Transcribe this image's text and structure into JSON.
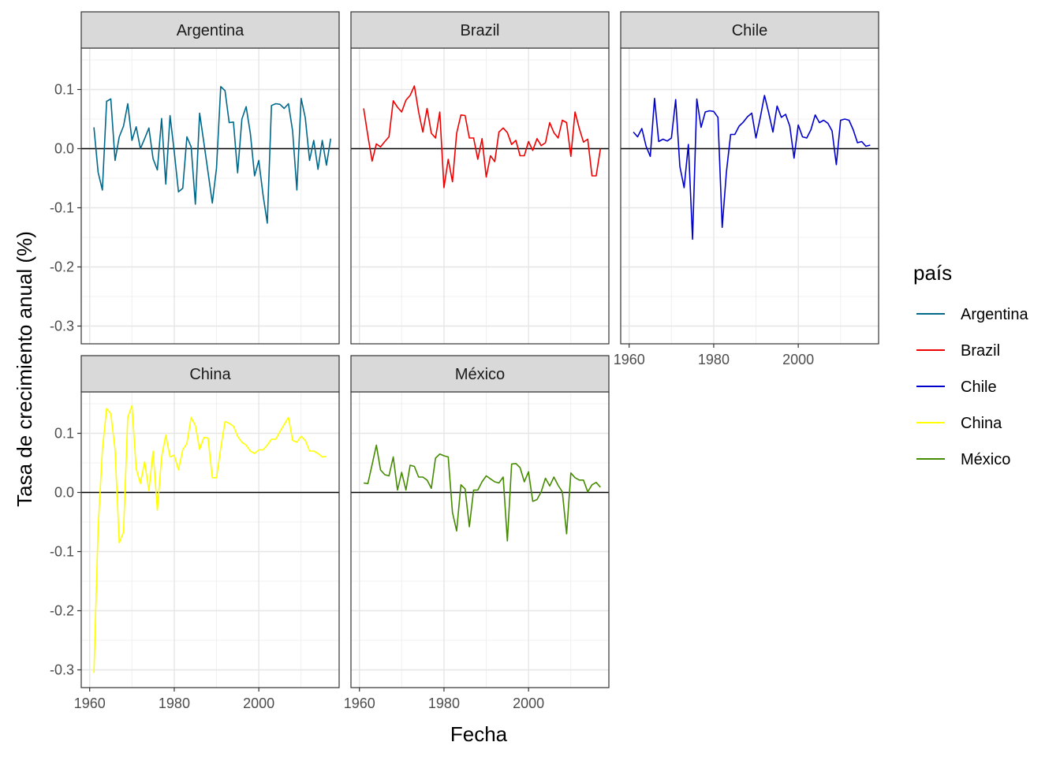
{
  "chart_data": {
    "type": "line",
    "facet_by": "país",
    "xlabel": "Fecha",
    "ylabel": "Tasa de crecimiento anual (%)",
    "xlim": [
      1958,
      2019
    ],
    "ylim": [
      -0.33,
      0.17
    ],
    "x_ticks": [
      "1960",
      "1980",
      "2000"
    ],
    "y_ticks": [
      "0.1",
      "0.0",
      "-0.1",
      "-0.2",
      "-0.3"
    ],
    "hline": 0,
    "grid": true,
    "legend": {
      "title": "país",
      "position": "right"
    },
    "series": [
      {
        "name": "Argentina",
        "color": "#00688B",
        "x": [
          1961,
          1962,
          1963,
          1964,
          1965,
          1966,
          1967,
          1968,
          1969,
          1970,
          1971,
          1972,
          1973,
          1974,
          1975,
          1976,
          1977,
          1978,
          1979,
          1980,
          1981,
          1982,
          1983,
          1984,
          1985,
          1986,
          1987,
          1988,
          1989,
          1990,
          1991,
          1992,
          1993,
          1994,
          1995,
          1996,
          1997,
          1998,
          1999,
          2000,
          2001,
          2002,
          2003,
          2004,
          2005,
          2006,
          2007,
          2008,
          2009,
          2010,
          2011,
          2012,
          2013,
          2014,
          2015,
          2016,
          2017
        ],
        "y": [
          0.036,
          -0.04,
          -0.07,
          0.08,
          0.084,
          -0.02,
          0.02,
          0.038,
          0.076,
          0.014,
          0.037,
          0.0,
          0.017,
          0.035,
          -0.017,
          -0.036,
          0.051,
          -0.06,
          0.056,
          -0.005,
          -0.073,
          -0.067,
          0.02,
          0.003,
          -0.094,
          0.06,
          0.01,
          -0.04,
          -0.092,
          -0.033,
          0.105,
          0.098,
          0.044,
          0.045,
          -0.041,
          0.05,
          0.071,
          0.026,
          -0.046,
          -0.02,
          -0.078,
          -0.126,
          0.073,
          0.076,
          0.075,
          0.068,
          0.076,
          0.03,
          -0.07,
          0.085,
          0.052,
          -0.02,
          0.014,
          -0.035,
          0.014,
          -0.028,
          0.017
        ]
      },
      {
        "name": "Brazil",
        "color": "#EE0000",
        "x": [
          1961,
          1962,
          1963,
          1964,
          1965,
          1966,
          1967,
          1968,
          1969,
          1970,
          1971,
          1972,
          1973,
          1974,
          1975,
          1976,
          1977,
          1978,
          1979,
          1980,
          1981,
          1982,
          1983,
          1984,
          1985,
          1986,
          1987,
          1988,
          1989,
          1990,
          1991,
          1992,
          1993,
          1994,
          1995,
          1996,
          1997,
          1998,
          1999,
          2000,
          2001,
          2002,
          2003,
          2004,
          2005,
          2006,
          2007,
          2008,
          2009,
          2010,
          2011,
          2012,
          2013,
          2014,
          2015,
          2016,
          2017
        ],
        "y": [
          0.068,
          0.022,
          -0.021,
          0.008,
          0.003,
          0.012,
          0.02,
          0.081,
          0.07,
          0.062,
          0.082,
          0.09,
          0.106,
          0.062,
          0.028,
          0.068,
          0.026,
          0.018,
          0.062,
          -0.066,
          -0.018,
          -0.056,
          0.026,
          0.057,
          0.056,
          0.018,
          0.018,
          -0.018,
          0.017,
          -0.048,
          -0.012,
          -0.022,
          0.028,
          0.035,
          0.027,
          0.007,
          0.014,
          -0.012,
          -0.012,
          0.012,
          -0.003,
          0.017,
          0.005,
          0.01,
          0.044,
          0.027,
          0.018,
          0.048,
          0.044,
          -0.013,
          0.062,
          0.034,
          0.011,
          0.016,
          -0.046,
          -0.046,
          0.0
        ]
      },
      {
        "name": "Chile",
        "color": "#0000CD",
        "x": [
          1961,
          1962,
          1963,
          1964,
          1965,
          1966,
          1967,
          1968,
          1969,
          1970,
          1971,
          1972,
          1973,
          1974,
          1975,
          1976,
          1977,
          1978,
          1979,
          1980,
          1981,
          1982,
          1983,
          1984,
          1985,
          1986,
          1987,
          1988,
          1989,
          1990,
          1991,
          1992,
          1993,
          1994,
          1995,
          1996,
          1997,
          1998,
          1999,
          2000,
          2001,
          2002,
          2003,
          2004,
          2005,
          2006,
          2007,
          2008,
          2009,
          2010,
          2011,
          2012,
          2013,
          2014,
          2015,
          2016,
          2017
        ],
        "y": [
          0.028,
          0.02,
          0.034,
          0.004,
          -0.013,
          0.085,
          0.012,
          0.016,
          0.013,
          0.018,
          0.083,
          -0.03,
          -0.066,
          0.007,
          -0.153,
          0.084,
          0.036,
          0.062,
          0.064,
          0.063,
          0.053,
          -0.133,
          -0.04,
          0.024,
          0.024,
          0.038,
          0.045,
          0.054,
          0.06,
          0.018,
          0.052,
          0.09,
          0.061,
          0.028,
          0.072,
          0.053,
          0.058,
          0.038,
          -0.016,
          0.04,
          0.02,
          0.018,
          0.032,
          0.057,
          0.044,
          0.048,
          0.043,
          0.03,
          -0.027,
          0.048,
          0.05,
          0.048,
          0.032,
          0.01,
          0.012,
          0.004,
          0.006
        ]
      },
      {
        "name": "China",
        "color": "#FFFF00",
        "x": [
          1961,
          1962,
          1963,
          1964,
          1965,
          1966,
          1967,
          1968,
          1969,
          1970,
          1971,
          1972,
          1973,
          1974,
          1975,
          1976,
          1977,
          1978,
          1979,
          1980,
          1981,
          1982,
          1983,
          1984,
          1985,
          1986,
          1987,
          1988,
          1989,
          1990,
          1991,
          1992,
          1993,
          1994,
          1995,
          1996,
          1997,
          1998,
          1999,
          2000,
          2001,
          2002,
          2003,
          2004,
          2005,
          2006,
          2007,
          2008,
          2009,
          2010,
          2011,
          2012,
          2013,
          2014,
          2015,
          2016
        ],
        "y": [
          -0.305,
          -0.06,
          0.072,
          0.142,
          0.133,
          0.072,
          -0.085,
          -0.067,
          0.127,
          0.147,
          0.04,
          0.015,
          0.052,
          0.003,
          0.07,
          -0.03,
          0.06,
          0.097,
          0.06,
          0.063,
          0.038,
          0.072,
          0.083,
          0.127,
          0.113,
          0.073,
          0.093,
          0.092,
          0.025,
          0.025,
          0.075,
          0.12,
          0.117,
          0.112,
          0.095,
          0.085,
          0.08,
          0.07,
          0.066,
          0.072,
          0.072,
          0.08,
          0.09,
          0.09,
          0.103,
          0.115,
          0.127,
          0.088,
          0.085,
          0.095,
          0.088,
          0.07,
          0.07,
          0.066,
          0.06,
          0.061
        ]
      },
      {
        "name": "México",
        "color": "#458B00",
        "x": [
          1961,
          1962,
          1963,
          1964,
          1965,
          1966,
          1967,
          1968,
          1969,
          1970,
          1971,
          1972,
          1973,
          1974,
          1975,
          1976,
          1977,
          1978,
          1979,
          1980,
          1981,
          1982,
          1983,
          1984,
          1985,
          1986,
          1987,
          1988,
          1989,
          1990,
          1991,
          1992,
          1993,
          1994,
          1995,
          1996,
          1997,
          1998,
          1999,
          2000,
          2001,
          2002,
          2003,
          2004,
          2005,
          2006,
          2007,
          2008,
          2009,
          2010,
          2011,
          2012,
          2013,
          2014,
          2015,
          2016,
          2017
        ],
        "y": [
          0.016,
          0.015,
          0.047,
          0.08,
          0.038,
          0.03,
          0.028,
          0.06,
          0.004,
          0.034,
          0.004,
          0.046,
          0.044,
          0.026,
          0.026,
          0.021,
          0.007,
          0.058,
          0.065,
          0.062,
          0.06,
          -0.034,
          -0.065,
          0.013,
          0.006,
          -0.058,
          0.004,
          0.004,
          0.018,
          0.028,
          0.023,
          0.018,
          0.016,
          0.026,
          -0.082,
          0.048,
          0.049,
          0.042,
          0.018,
          0.035,
          -0.015,
          -0.012,
          0.001,
          0.024,
          0.011,
          0.026,
          0.012,
          0.001,
          -0.07,
          0.033,
          0.025,
          0.021,
          0.021,
          0.001,
          0.013,
          0.017,
          0.009
        ]
      }
    ]
  }
}
